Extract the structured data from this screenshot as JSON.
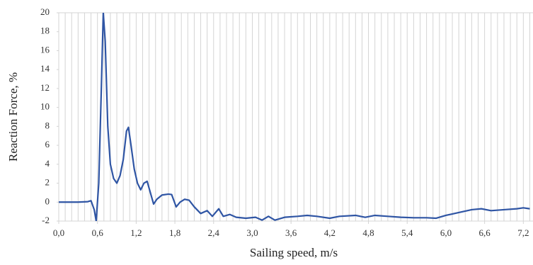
{
  "chart_data": {
    "type": "line",
    "x_label": "Sailing speed, m/s",
    "y_label": "Reaction Force, %",
    "xlim": [
      0,
      7.35
    ],
    "ylim": [
      -2,
      20
    ],
    "xticks": [
      {
        "value": 0,
        "label": "0,0"
      },
      {
        "value": 0.6,
        "label": "0,6"
      },
      {
        "value": 1.2,
        "label": "1,2"
      },
      {
        "value": 1.8,
        "label": "1,8"
      },
      {
        "value": 2.4,
        "label": "2,4"
      },
      {
        "value": 3.0,
        "label": "3,0"
      },
      {
        "value": 3.6,
        "label": "3,6"
      },
      {
        "value": 4.2,
        "label": "4,2"
      },
      {
        "value": 4.8,
        "label": "4,8"
      },
      {
        "value": 5.4,
        "label": "5,4"
      },
      {
        "value": 6.0,
        "label": "6,0"
      },
      {
        "value": 6.6,
        "label": "6,6"
      },
      {
        "value": 7.2,
        "label": "7,2"
      }
    ],
    "yticks": [
      -2,
      0,
      2,
      4,
      6,
      8,
      10,
      12,
      14,
      16,
      18,
      20
    ],
    "x_grid_step": 0.1,
    "grid": true,
    "series": [
      {
        "color": "#2f55a4",
        "x": [
          0,
          0.3,
          0.45,
          0.5,
          0.55,
          0.58,
          0.62,
          0.66,
          0.69,
          0.72,
          0.76,
          0.8,
          0.85,
          0.9,
          0.95,
          1.0,
          1.05,
          1.08,
          1.12,
          1.17,
          1.22,
          1.27,
          1.32,
          1.37,
          1.42,
          1.47,
          1.52,
          1.6,
          1.7,
          1.75,
          1.82,
          1.88,
          1.95,
          2.02,
          2.1,
          2.2,
          2.3,
          2.38,
          2.48,
          2.55,
          2.65,
          2.75,
          2.9,
          3.05,
          3.15,
          3.25,
          3.35,
          3.5,
          3.7,
          3.85,
          4.0,
          4.2,
          4.35,
          4.6,
          4.75,
          4.9,
          5.1,
          5.3,
          5.5,
          5.7,
          5.85,
          6.0,
          6.2,
          6.4,
          6.55,
          6.7,
          6.9,
          7.1,
          7.2,
          7.3
        ],
        "values": [
          0,
          0,
          0.05,
          0.15,
          -0.8,
          -2,
          2,
          12,
          20,
          17,
          8,
          4,
          2.5,
          2,
          2.8,
          4.5,
          7.5,
          7.9,
          6,
          3.5,
          2,
          1.3,
          2,
          2.2,
          1,
          -0.2,
          0.3,
          0.75,
          0.85,
          0.8,
          -0.5,
          0,
          0.3,
          0.2,
          -0.5,
          -1.2,
          -0.9,
          -1.5,
          -0.7,
          -1.5,
          -1.3,
          -1.6,
          -1.7,
          -1.6,
          -1.9,
          -1.5,
          -1.9,
          -1.6,
          -1.5,
          -1.4,
          -1.5,
          -1.7,
          -1.5,
          -1.4,
          -1.6,
          -1.4,
          -1.5,
          -1.6,
          -1.65,
          -1.65,
          -1.7,
          -1.4,
          -1.1,
          -0.8,
          -0.7,
          -0.9,
          -0.8,
          -0.7,
          -0.6,
          -0.7
        ]
      }
    ]
  }
}
